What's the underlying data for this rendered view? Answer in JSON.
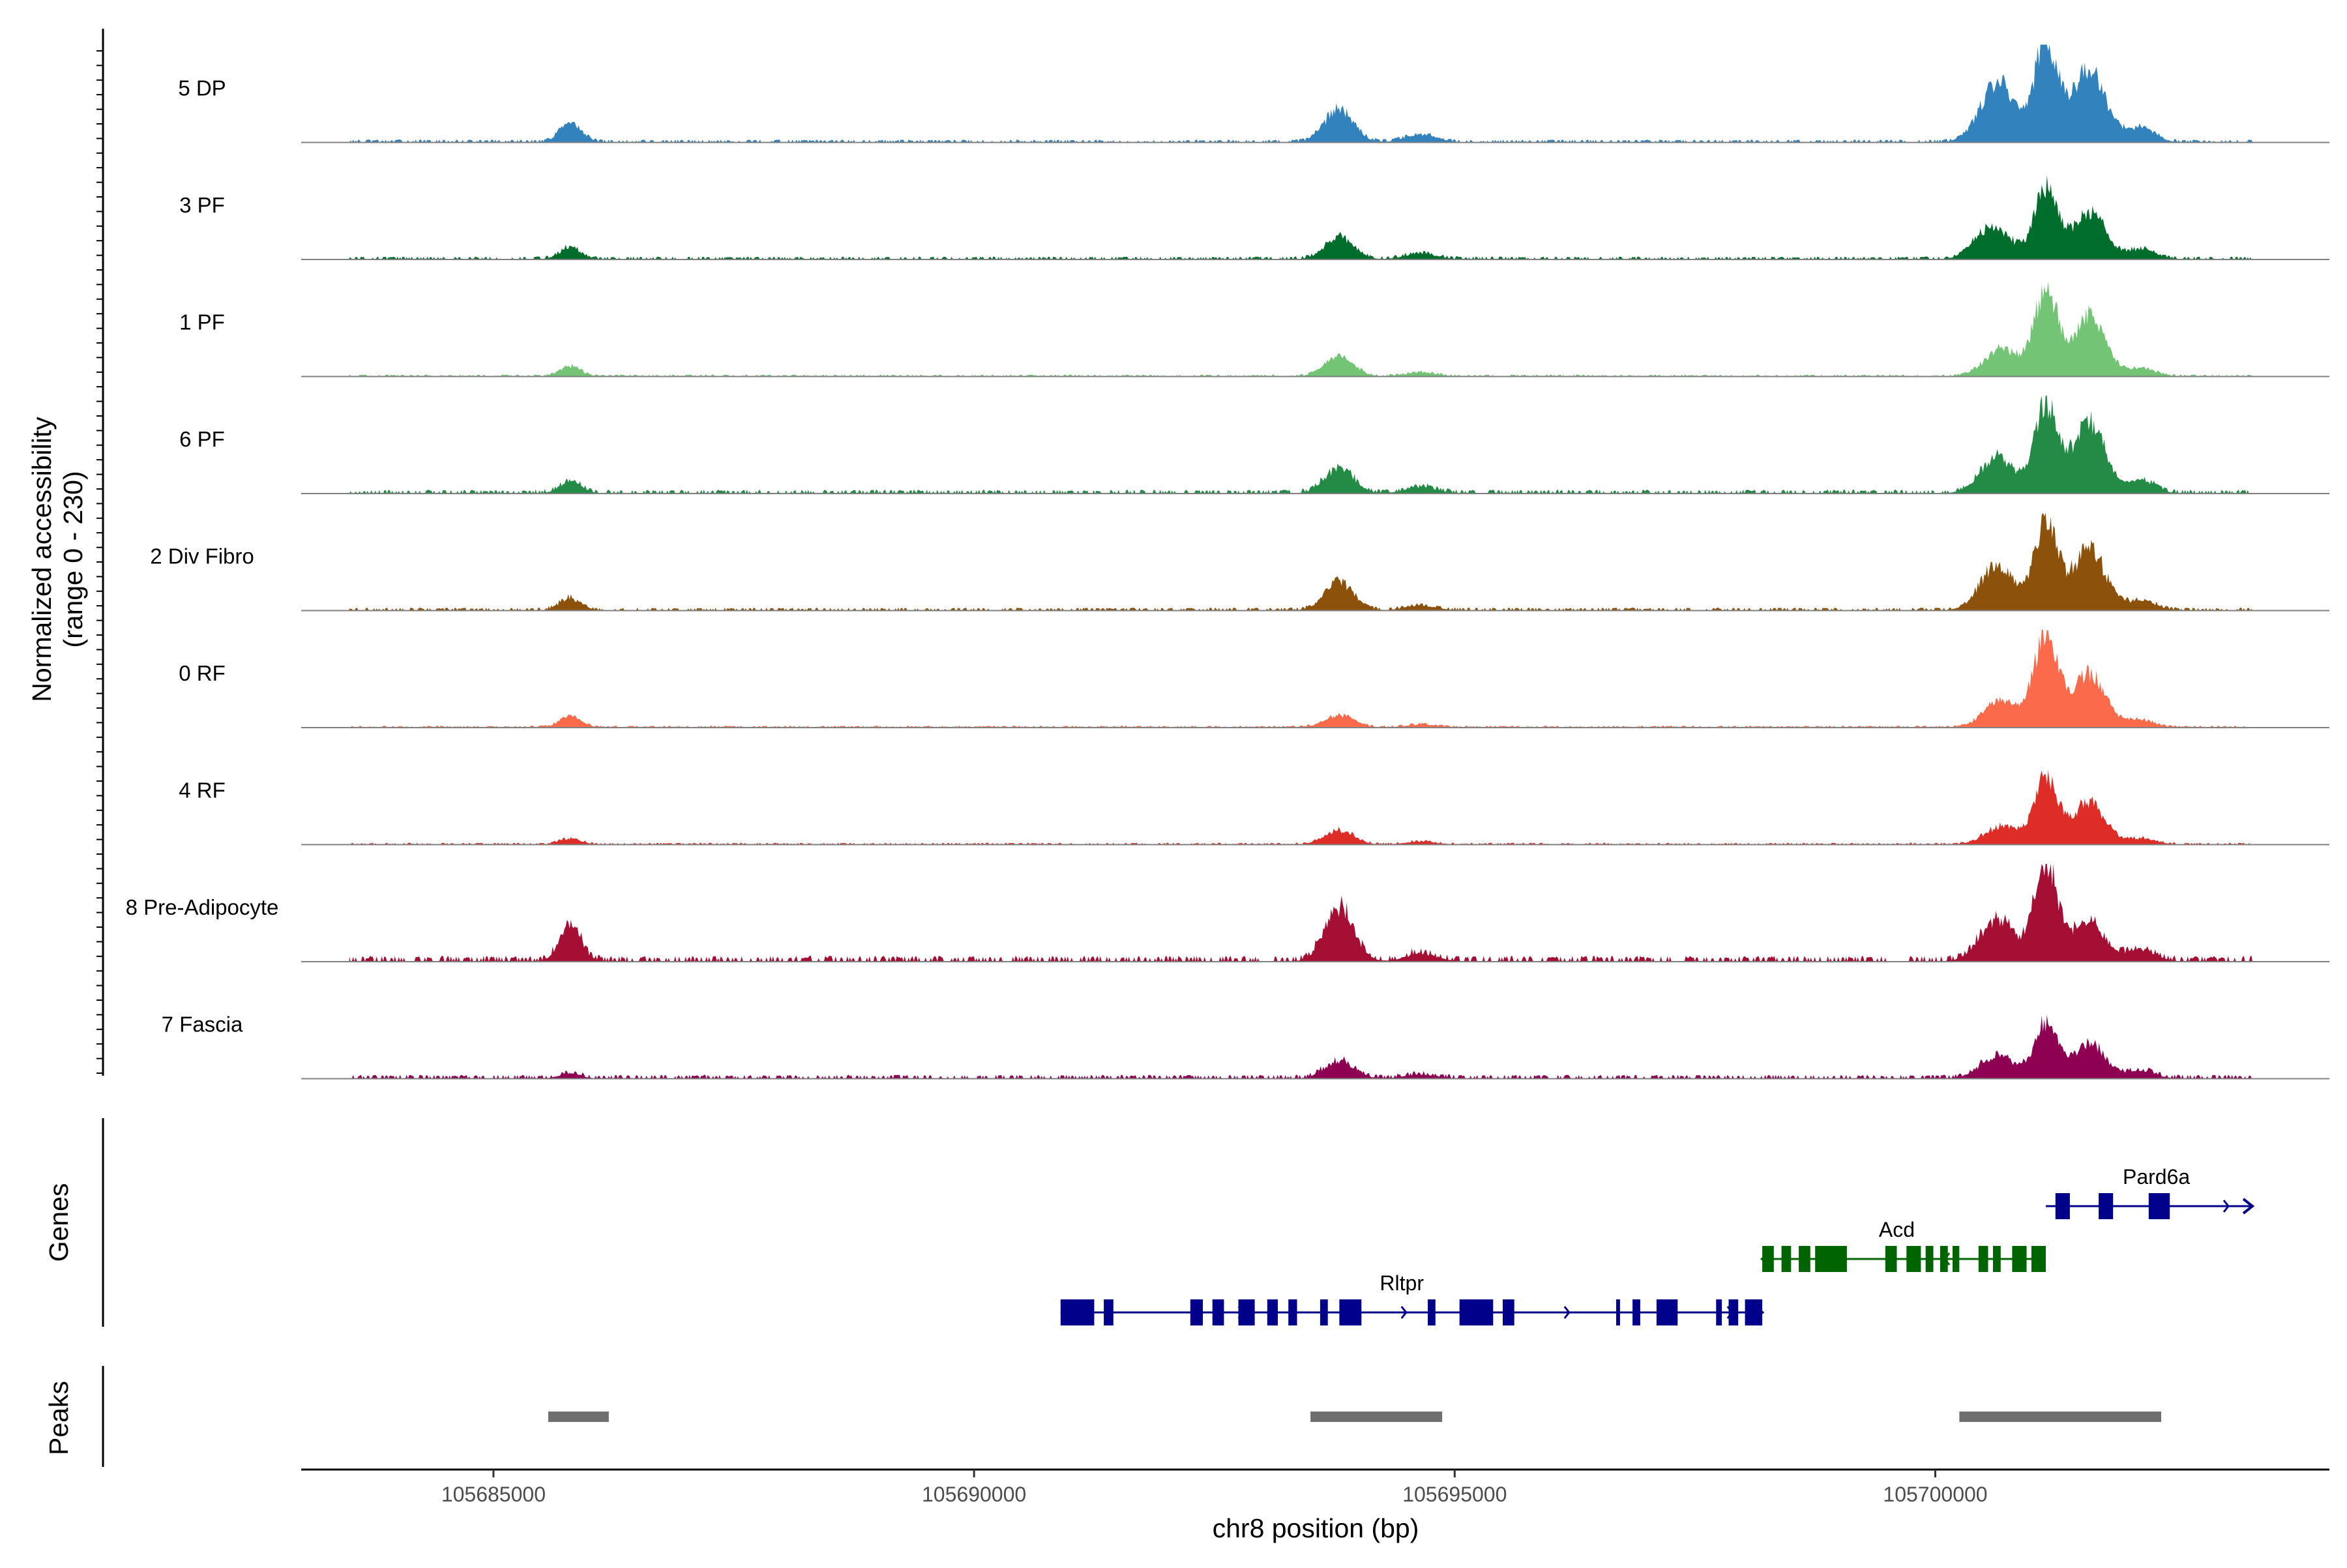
{
  "chart_data": {
    "type": "area",
    "title": "",
    "xlabel": "chr8 position (bp)",
    "ylabel_line1": "Normalized accessibility",
    "ylabel_line2": "(range 0 - 230)",
    "yrange": [
      0,
      230
    ],
    "xlim": [
      105683000,
      105704100
    ],
    "x_ticks": [
      105685000,
      105690000,
      105695000,
      105700000
    ],
    "x_tick_labels": [
      "105685000",
      "105690000",
      "105695000",
      "105700000"
    ],
    "track_labels": {
      "genes": "Genes",
      "peaks": "Peaks"
    },
    "coverage_extent": [
      105683500,
      105703300
    ],
    "tracks": [
      {
        "name": "5 DP",
        "color": "#3182bd",
        "background": 0.03,
        "peaks": [
          [
            105685800,
            110,
            0.2
          ],
          [
            105693800,
            150,
            0.33
          ],
          [
            105694650,
            160,
            0.08
          ],
          [
            105700650,
            180,
            0.6
          ],
          [
            105701150,
            120,
            1.0
          ],
          [
            105701600,
            170,
            0.75
          ],
          [
            105702150,
            140,
            0.15
          ]
        ]
      },
      {
        "name": "3 PF",
        "color": "#006d2c",
        "background": 0.03,
        "peaks": [
          [
            105685800,
            110,
            0.12
          ],
          [
            105693800,
            150,
            0.22
          ],
          [
            105694650,
            160,
            0.06
          ],
          [
            105700600,
            180,
            0.34
          ],
          [
            105701150,
            120,
            0.7
          ],
          [
            105701600,
            170,
            0.48
          ],
          [
            105702150,
            140,
            0.1
          ]
        ]
      },
      {
        "name": "1 PF",
        "color": "#74c476",
        "background": 0.02,
        "peaks": [
          [
            105685800,
            110,
            0.1
          ],
          [
            105693800,
            150,
            0.2
          ],
          [
            105694650,
            160,
            0.04
          ],
          [
            105700700,
            180,
            0.28
          ],
          [
            105701150,
            120,
            0.85
          ],
          [
            105701600,
            170,
            0.6
          ],
          [
            105702150,
            140,
            0.08
          ]
        ]
      },
      {
        "name": "6 PF",
        "color": "#238b45",
        "background": 0.04,
        "peaks": [
          [
            105685800,
            110,
            0.12
          ],
          [
            105693800,
            150,
            0.25
          ],
          [
            105694650,
            160,
            0.06
          ],
          [
            105700650,
            180,
            0.36
          ],
          [
            105701150,
            120,
            0.9
          ],
          [
            105701600,
            170,
            0.7
          ],
          [
            105702150,
            140,
            0.12
          ]
        ]
      },
      {
        "name": "2 Div Fibro",
        "color": "#8c510a",
        "background": 0.03,
        "peaks": [
          [
            105685800,
            110,
            0.12
          ],
          [
            105693800,
            150,
            0.28
          ],
          [
            105694650,
            160,
            0.05
          ],
          [
            105700650,
            180,
            0.45
          ],
          [
            105701150,
            120,
            0.88
          ],
          [
            105701600,
            170,
            0.62
          ],
          [
            105702150,
            140,
            0.1
          ]
        ]
      },
      {
        "name": "0 RF",
        "color": "#fb6a4a",
        "background": 0.02,
        "peaks": [
          [
            105685800,
            110,
            0.12
          ],
          [
            105693800,
            150,
            0.12
          ],
          [
            105694650,
            160,
            0.03
          ],
          [
            105700700,
            180,
            0.28
          ],
          [
            105701150,
            120,
            0.95
          ],
          [
            105701600,
            170,
            0.55
          ],
          [
            105702150,
            140,
            0.07
          ]
        ]
      },
      {
        "name": "4 RF",
        "color": "#de2d26",
        "background": 0.02,
        "peaks": [
          [
            105685800,
            110,
            0.06
          ],
          [
            105693800,
            150,
            0.14
          ],
          [
            105694650,
            160,
            0.03
          ],
          [
            105700700,
            180,
            0.18
          ],
          [
            105701150,
            120,
            0.68
          ],
          [
            105701600,
            170,
            0.42
          ],
          [
            105702150,
            140,
            0.06
          ]
        ]
      },
      {
        "name": "8 Pre-Adipocyte",
        "color": "#a50f33",
        "background": 0.06,
        "peaks": [
          [
            105685800,
            110,
            0.35
          ],
          [
            105693800,
            150,
            0.55
          ],
          [
            105694650,
            160,
            0.08
          ],
          [
            105700650,
            180,
            0.42
          ],
          [
            105701150,
            120,
            0.98
          ],
          [
            105701600,
            170,
            0.4
          ],
          [
            105702150,
            140,
            0.12
          ]
        ]
      },
      {
        "name": "7 Fascia",
        "color": "#8e0152",
        "background": 0.04,
        "peaks": [
          [
            105685800,
            110,
            0.05
          ],
          [
            105693800,
            150,
            0.18
          ],
          [
            105694650,
            160,
            0.04
          ],
          [
            105700650,
            180,
            0.22
          ],
          [
            105701150,
            120,
            0.55
          ],
          [
            105701600,
            170,
            0.35
          ],
          [
            105702150,
            140,
            0.08
          ]
        ]
      }
    ],
    "genes": [
      {
        "name": "Rltpr",
        "strand": "+",
        "color": "#00008b",
        "start": 105690900,
        "end": 105698200,
        "label_pos": 105694450,
        "exons": [
          [
            105690900,
            105691250
          ],
          [
            105691350,
            105691450
          ],
          [
            105692250,
            105692380
          ],
          [
            105692480,
            105692600
          ],
          [
            105692750,
            105692920
          ],
          [
            105693050,
            105693160
          ],
          [
            105693270,
            105693360
          ],
          [
            105693600,
            105693680
          ],
          [
            105693800,
            105694030
          ],
          [
            105694720,
            105694800
          ],
          [
            105695050,
            105695400
          ],
          [
            105695500,
            105695620
          ],
          [
            105696680,
            105696720
          ],
          [
            105696850,
            105696930
          ],
          [
            105697100,
            105697320
          ],
          [
            105697720,
            105697780
          ],
          [
            105697850,
            105697950
          ],
          [
            105698020,
            105698200
          ]
        ]
      },
      {
        "name": "Acd",
        "strand": "-",
        "color": "#006400",
        "start": 105698200,
        "end": 105701150,
        "label_pos": 105699600,
        "exons": [
          [
            105698200,
            105698320
          ],
          [
            105698400,
            105698500
          ],
          [
            105698580,
            105698700
          ],
          [
            105698750,
            105699080
          ],
          [
            105699480,
            105699600
          ],
          [
            105699700,
            105699850
          ],
          [
            105699900,
            105699980
          ],
          [
            105700050,
            105700130
          ],
          [
            105700180,
            105700250
          ],
          [
            105700450,
            105700550
          ],
          [
            105700600,
            105700680
          ],
          [
            105700800,
            105700950
          ],
          [
            105701000,
            105701150
          ]
        ]
      },
      {
        "name": "Pard6a",
        "strand": "+",
        "color": "#00008b",
        "start": 105701150,
        "end": 105703300,
        "label_pos": 105702300,
        "exons": [
          [
            105701250,
            105701400
          ],
          [
            105701700,
            105701850
          ],
          [
            105702220,
            105702440
          ]
        ]
      }
    ],
    "peak_regions": [
      [
        105685570,
        105686200
      ],
      [
        105693500,
        105694870
      ],
      [
        105700250,
        105702350
      ]
    ]
  }
}
